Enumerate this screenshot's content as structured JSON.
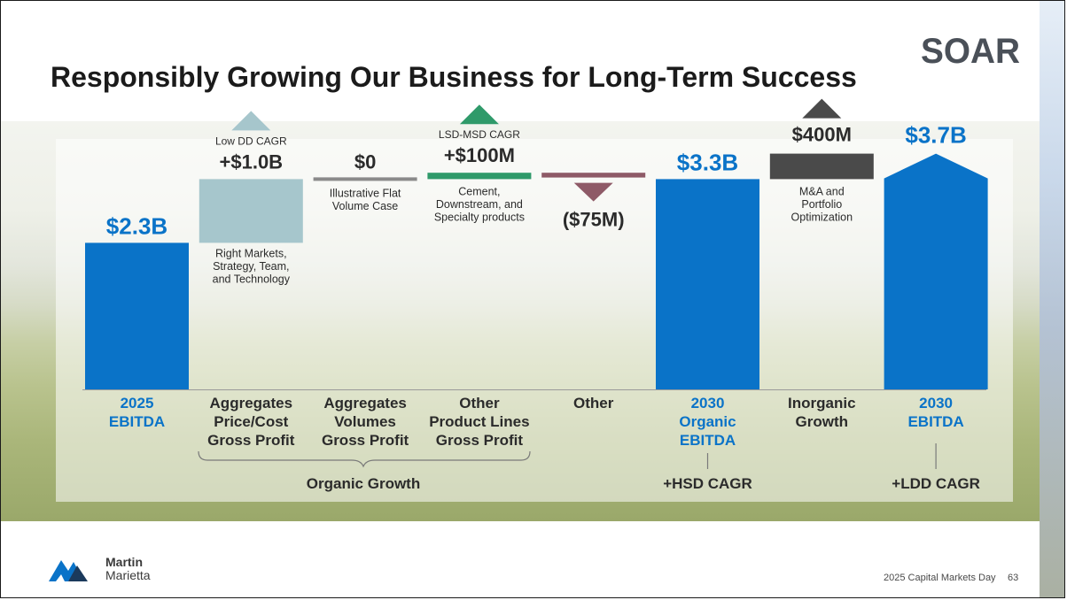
{
  "slide": {
    "title": "Responsibly Growing Our Business for Long-Term Success",
    "logo_text": "SOAR",
    "footer_logo_line1": "Martin",
    "footer_logo_line2": "Marietta",
    "footer_text": "2025 Capital Markets Day",
    "page_number": "63"
  },
  "colors": {
    "blue": "#0a73c8",
    "light_teal": "#a6c6cc",
    "gray": "#8a8a8a",
    "green": "#2f9a6a",
    "maroon": "#8e5a67",
    "dark_gray": "#4a4a4a",
    "axis_label_blue": "#0a73c8",
    "axis_label_dark": "#2b2b2b"
  },
  "chart_data": {
    "type": "bar",
    "subtype": "waterfall",
    "units": "$B",
    "ylim": [
      0,
      3.9
    ],
    "steps": [
      {
        "key": "ebitda2025",
        "kind": "total",
        "value": 2.3,
        "label": "$2.3B",
        "category": [
          "2025",
          "EBITDA"
        ],
        "color_key": "blue",
        "label_color": "blue",
        "above_note": [],
        "below_note": [],
        "marker": "none"
      },
      {
        "key": "aggPrice",
        "kind": "delta",
        "value": 1.0,
        "label": "+$1.0B",
        "category": [
          "Aggregates",
          "Price/Cost",
          "Gross Profit"
        ],
        "color_key": "light_teal",
        "label_color": "dark",
        "above_note": [
          "Low DD CAGR"
        ],
        "below_note": [
          "Right Markets,",
          "Strategy, Team,",
          "and Technology"
        ],
        "marker": "up"
      },
      {
        "key": "aggVol",
        "kind": "delta",
        "value": 0,
        "label": "$0",
        "category": [
          "Aggregates",
          "Volumes",
          "Gross Profit"
        ],
        "color_key": "gray",
        "label_color": "dark",
        "above_note": [],
        "below_note": [
          "Illustrative Flat",
          "Volume Case"
        ],
        "marker": "none"
      },
      {
        "key": "otherProd",
        "kind": "delta",
        "value": 0.1,
        "label": "+$100M",
        "category": [
          "Other",
          "Product Lines",
          "Gross Profit"
        ],
        "color_key": "green",
        "label_color": "dark",
        "above_note": [
          "LSD-MSD CAGR"
        ],
        "below_note": [
          "Cement,",
          "Downstream, and",
          "Specialty products"
        ],
        "marker": "up"
      },
      {
        "key": "other",
        "kind": "delta",
        "value": -0.075,
        "label": "($75M)",
        "category": [
          "Other"
        ],
        "color_key": "maroon",
        "label_color": "dark",
        "above_note": [],
        "below_note": [],
        "marker": "down"
      },
      {
        "key": "organic2030",
        "kind": "total",
        "value": 3.3,
        "label": "$3.3B",
        "category": [
          "2030",
          "Organic",
          "EBITDA"
        ],
        "color_key": "blue",
        "label_color": "blue",
        "above_note": [],
        "below_note": [],
        "marker": "none"
      },
      {
        "key": "inorganic",
        "kind": "delta",
        "value": 0.4,
        "label": "$400M",
        "category": [
          "Inorganic",
          "Growth"
        ],
        "color_key": "dark_gray",
        "label_color": "dark",
        "above_note": [],
        "below_note": [
          "M&A and",
          "Portfolio",
          "Optimization"
        ],
        "marker": "up"
      },
      {
        "key": "ebitda2030",
        "kind": "total",
        "value": 3.7,
        "label": "$3.7B",
        "category": [
          "2030",
          "EBITDA"
        ],
        "color_key": "blue",
        "label_color": "blue",
        "above_note": [],
        "below_note": [],
        "marker": "none",
        "peaked_top": true
      }
    ],
    "annotations": {
      "organic_growth": "Organic Growth",
      "hsd_cagr": "+HSD CAGR",
      "ldd_cagr": "+LDD CAGR"
    }
  }
}
